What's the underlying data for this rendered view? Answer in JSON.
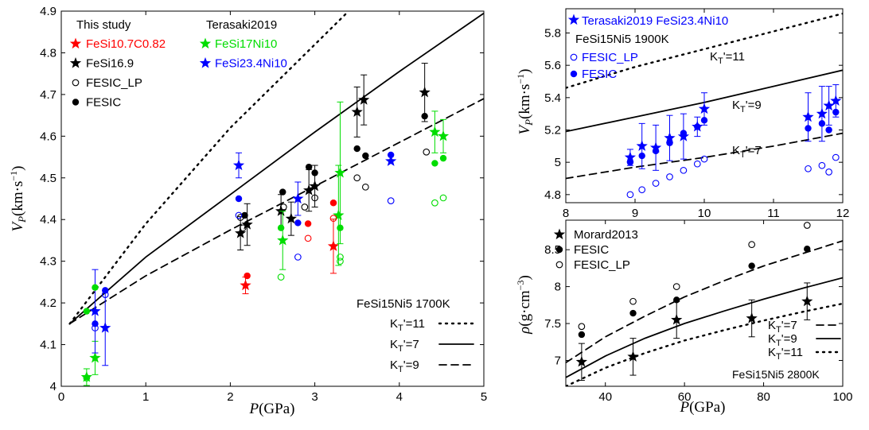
{
  "chart_data": [
    {
      "id": "A",
      "type": "scatter",
      "xlabel": "P(GPa)",
      "ylabel": "V_P (km·s⁻¹)",
      "xlim": [
        0,
        5
      ],
      "ylim": [
        4.0,
        4.9
      ],
      "xticks": [
        0,
        1,
        2,
        3,
        4,
        5
      ],
      "yticks": [
        4.0,
        4.1,
        4.2,
        4.3,
        4.4,
        4.5,
        4.6,
        4.7,
        4.8,
        4.9
      ],
      "xtick_labels": [
        "0",
        "1",
        "2",
        "3",
        "4",
        "5"
      ],
      "ytick_labels": [
        "4",
        "4.1",
        "4.2",
        "4.3",
        "4.4",
        "4.5",
        "4.6",
        "4.7",
        "4.8",
        "4.9"
      ],
      "legend_headers": [
        "This study",
        "Terasaki2019"
      ],
      "curve_legend_title": "FeSi15Ni5 1700K",
      "series": [
        {
          "name": "FeSi10.7C0.82",
          "color": "#ff0000",
          "marker": "star",
          "points": [
            [
              2.18,
              4.242,
              0.02
            ],
            [
              3.22,
              4.336,
              0.065
            ]
          ]
        },
        {
          "name": "FeSi16.9",
          "color": "#000000",
          "marker": "star",
          "points": [
            [
              2.12,
              4.367,
              0.04
            ],
            [
              2.2,
              4.388,
              0.05
            ],
            [
              2.6,
              4.42,
              0.04
            ],
            [
              2.72,
              4.402,
              0.04
            ],
            [
              2.93,
              4.47,
              0.05
            ],
            [
              3.0,
              4.48,
              0.05
            ],
            [
              3.5,
              4.658,
              0.06
            ],
            [
              3.58,
              4.687,
              0.06
            ],
            [
              4.3,
              4.705,
              0.07
            ]
          ]
        },
        {
          "name": "FESIC_LP",
          "color": "#000000",
          "marker": "open-circle",
          "points": [
            [
              2.12,
              4.405,
              null
            ],
            [
              2.15,
              4.38,
              null
            ],
            [
              2.63,
              4.43,
              null
            ],
            [
              2.88,
              4.43,
              null
            ],
            [
              3.0,
              4.452,
              null
            ],
            [
              3.5,
              4.5,
              null
            ],
            [
              3.6,
              4.478,
              null
            ],
            [
              4.32,
              4.562,
              null
            ]
          ]
        },
        {
          "name": "FESIC",
          "color": "#000000",
          "marker": "filled-circle",
          "points": [
            [
              2.17,
              4.41,
              null
            ],
            [
              2.62,
              4.466,
              null
            ],
            [
              2.93,
              4.526,
              null
            ],
            [
              3.0,
              4.512,
              null
            ],
            [
              3.5,
              4.57,
              null
            ],
            [
              3.6,
              4.553,
              null
            ],
            [
              4.3,
              4.648,
              null
            ]
          ]
        },
        {
          "name": "FeSi17Ni10",
          "color": "#00dd00",
          "marker": "star",
          "points": [
            [
              0.3,
              4.022,
              0.02
            ],
            [
              0.4,
              4.068,
              0.04
            ],
            [
              2.62,
              4.35,
              0.07
            ],
            [
              3.28,
              4.41,
              0.12
            ],
            [
              3.3,
              4.512,
              0.17
            ],
            [
              4.42,
              4.61,
              0.05
            ],
            [
              4.52,
              4.6,
              0.04
            ]
          ]
        },
        {
          "name": "FeSi23.4Ni10",
          "color": "#0000ff",
          "marker": "star",
          "points": [
            [
              0.4,
              4.18,
              0.1
            ],
            [
              0.52,
              4.14,
              0.09
            ],
            [
              2.1,
              4.53,
              0.03
            ],
            [
              2.8,
              4.45,
              0.04
            ],
            [
              3.9,
              4.54,
              null
            ]
          ]
        },
        {
          "name": "FeSi10.7C0.82 FESIC",
          "color": "#ff0000",
          "marker": "filled-circle",
          "points": [
            [
              2.2,
              4.265,
              null
            ],
            [
              2.92,
              4.39,
              null
            ],
            [
              3.22,
              4.44,
              null
            ]
          ]
        },
        {
          "name": "FeSi10.7C0.82 FESIC_LP",
          "color": "#ff0000",
          "marker": "open-circle",
          "points": [
            [
              2.92,
              4.355,
              null
            ],
            [
              3.22,
              4.403,
              null
            ]
          ]
        },
        {
          "name": "FeSi17Ni10 FESIC",
          "color": "#00dd00",
          "marker": "filled-circle",
          "points": [
            [
              0.3,
              4.18,
              null
            ],
            [
              0.4,
              4.237,
              null
            ],
            [
              2.6,
              4.38,
              null
            ],
            [
              3.3,
              4.38,
              null
            ],
            [
              4.42,
              4.535,
              null
            ],
            [
              4.52,
              4.547,
              null
            ]
          ]
        },
        {
          "name": "FeSi17Ni10 FESIC_LP",
          "color": "#00dd00",
          "marker": "open-circle",
          "points": [
            [
              0.3,
              4.02,
              null
            ],
            [
              2.6,
              4.262,
              null
            ],
            [
              3.3,
              4.3,
              null
            ],
            [
              3.3,
              4.31,
              null
            ],
            [
              4.42,
              4.44,
              null
            ],
            [
              4.52,
              4.452,
              null
            ]
          ]
        },
        {
          "name": "FeSi23.4Ni10 FESIC",
          "color": "#0000ff",
          "marker": "filled-circle",
          "points": [
            [
              0.4,
              4.15,
              null
            ],
            [
              0.52,
              4.23,
              null
            ],
            [
              2.1,
              4.45,
              null
            ],
            [
              2.8,
              4.392,
              null
            ],
            [
              3.9,
              4.555,
              null
            ]
          ]
        },
        {
          "name": "FeSi23.4Ni10 FESIC_LP",
          "color": "#0000ff",
          "marker": "open-circle",
          "points": [
            [
              0.4,
              4.14,
              null
            ],
            [
              0.52,
              4.22,
              null
            ],
            [
              2.1,
              4.41,
              null
            ],
            [
              2.8,
              4.31,
              null
            ],
            [
              3.9,
              4.445,
              null
            ]
          ]
        }
      ],
      "curves": [
        {
          "name": "K_T'=11",
          "style": "dotted",
          "points": [
            [
              0.1,
              4.15
            ],
            [
              1,
              4.39
            ],
            [
              2,
              4.62
            ],
            [
              3,
              4.82
            ],
            [
              3.4,
              4.9
            ]
          ]
        },
        {
          "name": "K_T'=7",
          "style": "solid",
          "points": [
            [
              0.1,
              4.15
            ],
            [
              1,
              4.31
            ],
            [
              2,
              4.46
            ],
            [
              3,
              4.61
            ],
            [
              4,
              4.755
            ],
            [
              5,
              4.895
            ]
          ]
        },
        {
          "name": "K_T'=9",
          "style": "dashed",
          "points": [
            [
              0.1,
              4.15
            ],
            [
              1,
              4.265
            ],
            [
              2,
              4.375
            ],
            [
              3,
              4.48
            ],
            [
              4,
              4.585
            ],
            [
              5,
              4.69
            ]
          ]
        }
      ]
    },
    {
      "id": "B",
      "type": "scatter",
      "xlabel": "",
      "ylabel": "V_P (km·s⁻¹)",
      "xlim": [
        8,
        12
      ],
      "ylim": [
        4.75,
        5.95
      ],
      "xticks": [
        8,
        9,
        10,
        11,
        12
      ],
      "yticks": [
        4.8,
        5.0,
        5.2,
        5.4,
        5.6,
        5.8
      ],
      "xtick_labels": [
        "8",
        "9",
        "10",
        "11",
        "12"
      ],
      "ytick_labels": [
        "4.8",
        "5",
        "5.2",
        "5.4",
        "5.6",
        "5.8"
      ],
      "legend_title": "FeSi15Ni5 1900K",
      "series": [
        {
          "name": "Terasaki2019 FeSi23.4Ni10",
          "color": "#0000ff",
          "marker": "star",
          "points": [
            [
              8.93,
              5.03,
              0.05
            ],
            [
              9.1,
              5.1,
              0.14
            ],
            [
              9.3,
              5.09,
              0.14
            ],
            [
              9.5,
              5.15,
              0.14
            ],
            [
              9.7,
              5.16,
              0.14
            ],
            [
              9.9,
              5.22,
              0.06
            ],
            [
              10.0,
              5.33,
              0.1
            ],
            [
              11.5,
              5.28,
              0.15
            ],
            [
              11.7,
              5.3,
              0.17
            ],
            [
              11.8,
              5.35,
              0.12
            ],
            [
              11.9,
              5.38,
              0.1
            ]
          ]
        },
        {
          "name": "FESIC_LP",
          "color": "#0000ff",
          "marker": "open-circle",
          "points": [
            [
              8.93,
              4.8,
              null
            ],
            [
              9.1,
              4.83,
              null
            ],
            [
              9.3,
              4.87,
              null
            ],
            [
              9.5,
              4.91,
              null
            ],
            [
              9.7,
              4.95,
              null
            ],
            [
              9.9,
              4.99,
              null
            ],
            [
              10.0,
              5.02,
              null
            ],
            [
              11.5,
              4.96,
              null
            ],
            [
              11.7,
              4.98,
              null
            ],
            [
              11.8,
              4.94,
              null
            ],
            [
              11.9,
              5.03,
              null
            ]
          ]
        },
        {
          "name": "FESIC",
          "color": "#0000ff",
          "marker": "filled-circle",
          "points": [
            [
              8.93,
              5.0,
              null
            ],
            [
              9.1,
              5.04,
              null
            ],
            [
              9.3,
              5.07,
              null
            ],
            [
              9.5,
              5.12,
              null
            ],
            [
              9.7,
              5.18,
              null
            ],
            [
              9.9,
              5.22,
              null
            ],
            [
              10.0,
              5.26,
              null
            ],
            [
              11.5,
              5.21,
              null
            ],
            [
              11.7,
              5.24,
              null
            ],
            [
              11.8,
              5.2,
              null
            ],
            [
              11.9,
              5.31,
              null
            ]
          ]
        }
      ],
      "curves": [
        {
          "name": "K_T'=11",
          "style": "dotted",
          "points": [
            [
              8,
              5.46
            ],
            [
              9,
              5.59
            ],
            [
              10,
              5.7
            ],
            [
              11,
              5.81
            ],
            [
              12,
              5.92
            ]
          ]
        },
        {
          "name": "K_T'=9",
          "style": "solid",
          "points": [
            [
              8,
              5.19
            ],
            [
              9,
              5.28
            ],
            [
              10,
              5.37
            ],
            [
              11,
              5.47
            ],
            [
              12,
              5.57
            ]
          ]
        },
        {
          "name": "K_T'=7",
          "style": "dashed",
          "points": [
            [
              8,
              4.9
            ],
            [
              9,
              4.97
            ],
            [
              10,
              5.03
            ],
            [
              11,
              5.1
            ],
            [
              12,
              5.18
            ]
          ]
        }
      ],
      "curve_labels": [
        "K_T'=11",
        "K_T'=9",
        "K_T'=7"
      ]
    },
    {
      "id": "C",
      "type": "scatter",
      "xlabel": "P(GPa)",
      "ylabel": "ρ (g·cm⁻³)",
      "xlim": [
        30,
        100
      ],
      "ylim": [
        6.65,
        8.9
      ],
      "xticks": [
        40,
        60,
        80,
        100
      ],
      "yticks": [
        7.0,
        7.5,
        8.0,
        8.5
      ],
      "xtick_labels": [
        "40",
        "60",
        "80",
        "100"
      ],
      "ytick_labels": [
        "7",
        "7.5",
        "8",
        "8.5"
      ],
      "curve_legend_title": "FeSi15Ni5 2800K",
      "series": [
        {
          "name": "Morard2013",
          "color": "#000000",
          "marker": "star",
          "points": [
            [
              34,
              6.98,
              0.25
            ],
            [
              47,
              7.05,
              0.25
            ],
            [
              58,
              7.55,
              0.25
            ],
            [
              77,
              7.57,
              0.25
            ],
            [
              91,
              7.8,
              0.25
            ]
          ]
        },
        {
          "name": "FESIC",
          "color": "#000000",
          "marker": "filled-circle",
          "points": [
            [
              34,
              7.35,
              null
            ],
            [
              47,
              7.64,
              null
            ],
            [
              58,
              7.82,
              null
            ],
            [
              77,
              8.28,
              null
            ],
            [
              91,
              8.51,
              null
            ]
          ]
        },
        {
          "name": "FESIC_LP",
          "color": "#000000",
          "marker": "open-circle",
          "points": [
            [
              34,
              7.46,
              null
            ],
            [
              47,
              7.8,
              null
            ],
            [
              58,
              8.0,
              null
            ],
            [
              77,
              8.57,
              null
            ],
            [
              91,
              8.83,
              null
            ]
          ]
        }
      ],
      "curves": [
        {
          "name": "K_T'=7",
          "style": "dashed",
          "points": [
            [
              30,
              6.97
            ],
            [
              40,
              7.32
            ],
            [
              50,
              7.6
            ],
            [
              60,
              7.86
            ],
            [
              70,
              8.08
            ],
            [
              80,
              8.28
            ],
            [
              90,
              8.45
            ],
            [
              100,
              8.62
            ]
          ]
        },
        {
          "name": "K_T'=9",
          "style": "solid",
          "points": [
            [
              30,
              6.77
            ],
            [
              40,
              7.06
            ],
            [
              50,
              7.3
            ],
            [
              60,
              7.5
            ],
            [
              70,
              7.67
            ],
            [
              80,
              7.83
            ],
            [
              90,
              7.98
            ],
            [
              100,
              8.12
            ]
          ]
        },
        {
          "name": "K_T'=11",
          "style": "dotted",
          "points": [
            [
              30,
              6.65
            ],
            [
              40,
              6.9
            ],
            [
              50,
              7.1
            ],
            [
              60,
              7.27
            ],
            [
              70,
              7.41
            ],
            [
              80,
              7.54
            ],
            [
              90,
              7.66
            ],
            [
              100,
              7.77
            ]
          ]
        }
      ]
    }
  ]
}
